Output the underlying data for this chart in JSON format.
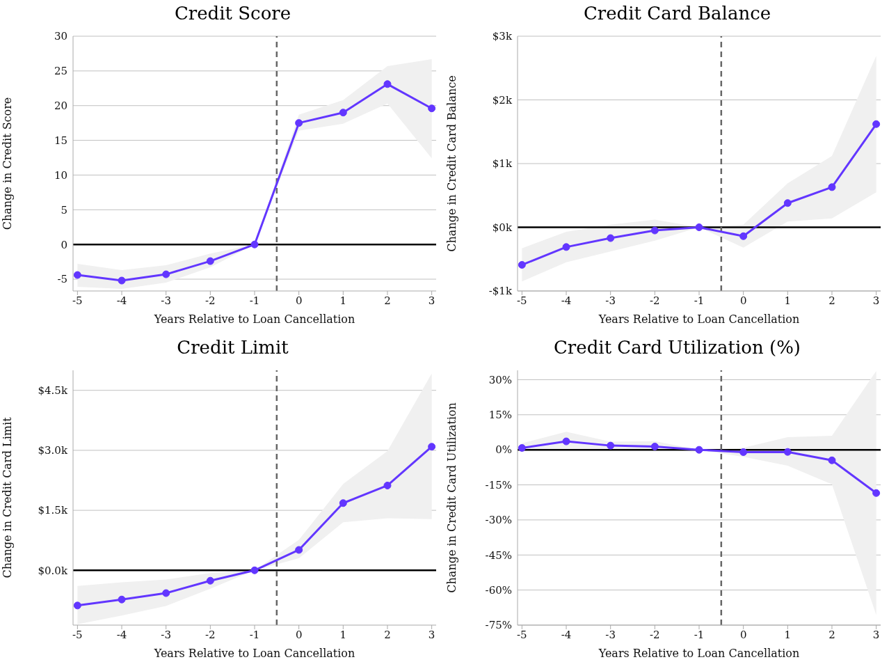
{
  "chart_data": [
    {
      "type": "line",
      "title": "Credit Score",
      "xlabel": "Years Relative to Loan Cancellation",
      "ylabel": "Change in Credit Score",
      "x": [
        -5,
        -4,
        -3,
        -2,
        -1,
        0,
        1,
        2,
        3
      ],
      "xlim": [
        -5.1,
        3.1
      ],
      "xticks": [
        -5,
        -4,
        -3,
        -2,
        -1,
        0,
        1,
        2,
        3
      ],
      "ylim": [
        -6.7,
        30
      ],
      "yticks": [
        -5,
        0,
        5,
        10,
        15,
        20,
        25,
        30
      ],
      "grid": "y",
      "marker": "circle",
      "line_style": "solid",
      "series": [
        {
          "color": "#6236ff",
          "values": [
            -4.4,
            -5.2,
            -4.3,
            -2.4,
            0,
            17.5,
            19.0,
            23.1,
            19.6
          ],
          "lower": [
            -6.1,
            -6.4,
            -5.5,
            -3.3,
            0,
            16.4,
            17.4,
            20.3,
            12.4
          ],
          "upper": [
            -2.8,
            -3.7,
            -3.0,
            -1.3,
            0,
            18.7,
            20.8,
            25.7,
            26.7
          ]
        }
      ],
      "ref_lines": [
        {
          "axis": "y",
          "value": 0,
          "color": "#000000",
          "line_style": "solid"
        },
        {
          "axis": "x",
          "value": -0.5,
          "color": "#666666",
          "line_style": "dashed"
        }
      ]
    },
    {
      "type": "line",
      "title": "Credit Card Balance",
      "xlabel": "Years Relative to Loan Cancellation",
      "ylabel": "Change in Credit Card Balance",
      "x": [
        -5,
        -4,
        -3,
        -2,
        -1,
        0,
        1,
        2,
        3
      ],
      "xlim": [
        -5.1,
        3.1
      ],
      "xticks": [
        -5,
        -4,
        -3,
        -2,
        -1,
        0,
        1,
        2,
        3
      ],
      "ylim": [
        -1000,
        3000
      ],
      "yticks": [
        {
          "value": -1000,
          "label": "-$1k"
        },
        {
          "value": 0,
          "label": "$0k"
        },
        {
          "value": 1000,
          "label": "$1k"
        },
        {
          "value": 2000,
          "label": "$2k"
        },
        {
          "value": 3000,
          "label": "$3k"
        }
      ],
      "grid": "y",
      "marker": "circle",
      "line_style": "solid",
      "series": [
        {
          "color": "#6236ff",
          "values": [
            -590,
            -310,
            -170,
            -50,
            0,
            -140,
            380,
            630,
            1620
          ],
          "lower": [
            -850,
            -550,
            -380,
            -210,
            0,
            -320,
            90,
            140,
            550
          ],
          "upper": [
            -330,
            -70,
            40,
            120,
            0,
            40,
            690,
            1120,
            2690
          ]
        }
      ],
      "ref_lines": [
        {
          "axis": "y",
          "value": 0,
          "color": "#000000",
          "line_style": "solid"
        },
        {
          "axis": "x",
          "value": -0.5,
          "color": "#666666",
          "line_style": "dashed"
        }
      ]
    },
    {
      "type": "line",
      "title": "Credit Limit",
      "xlabel": "Years Relative to Loan Cancellation",
      "ylabel": "Change in Credit Card Limit",
      "x": [
        -5,
        -4,
        -3,
        -2,
        -1,
        0,
        1,
        2,
        3
      ],
      "xlim": [
        -5.1,
        3.1
      ],
      "xticks": [
        -5,
        -4,
        -3,
        -2,
        -1,
        0,
        1,
        2,
        3
      ],
      "ylim": [
        -1370,
        5000
      ],
      "yticks": [
        {
          "value": 0,
          "label": "$0.0k"
        },
        {
          "value": 1500,
          "label": "$1.5k"
        },
        {
          "value": 3000,
          "label": "$3.0k"
        },
        {
          "value": 4500,
          "label": "$4.5k"
        }
      ],
      "grid": "y",
      "marker": "circle",
      "line_style": "solid",
      "series": [
        {
          "color": "#6236ff",
          "values": [
            -880,
            -730,
            -570,
            -260,
            0,
            510,
            1680,
            2120,
            3090
          ],
          "lower": [
            -1350,
            -1130,
            -890,
            -460,
            0,
            300,
            1200,
            1300,
            1280
          ],
          "upper": [
            -390,
            -300,
            -230,
            -70,
            0,
            760,
            2160,
            2980,
            4920
          ]
        }
      ],
      "ref_lines": [
        {
          "axis": "y",
          "value": 0,
          "color": "#000000",
          "line_style": "solid"
        },
        {
          "axis": "x",
          "value": -0.5,
          "color": "#666666",
          "line_style": "dashed"
        }
      ]
    },
    {
      "type": "line",
      "title": "Credit Card Utilization (%)",
      "xlabel": "Years Relative to Loan Cancellation",
      "ylabel": "Change in Credit Card Utilization",
      "x": [
        -5,
        -4,
        -3,
        -2,
        -1,
        0,
        1,
        2,
        3
      ],
      "xlim": [
        -5.1,
        3.1
      ],
      "xticks": [
        -5,
        -4,
        -3,
        -2,
        -1,
        0,
        1,
        2,
        3
      ],
      "ylim": [
        -75,
        34
      ],
      "yticks": [
        {
          "value": -75,
          "label": "-75%"
        },
        {
          "value": -60,
          "label": "-60%"
        },
        {
          "value": -45,
          "label": "-45%"
        },
        {
          "value": -30,
          "label": "-30%"
        },
        {
          "value": -15,
          "label": "-15%"
        },
        {
          "value": 0,
          "label": "0%"
        },
        {
          "value": 15,
          "label": "15%"
        },
        {
          "value": 30,
          "label": "30%"
        }
      ],
      "grid": "y",
      "marker": "circle",
      "line_style": "solid",
      "series": [
        {
          "color": "#6236ff",
          "values": [
            0.8,
            3.6,
            1.8,
            1.4,
            0,
            -1.0,
            -0.9,
            -4.5,
            -18.5
          ],
          "lower": [
            -0.5,
            -0.5,
            -0.5,
            -0.5,
            0,
            -3,
            -6.8,
            -14.8,
            -70.7
          ],
          "upper": [
            2.8,
            7.7,
            3.5,
            3.7,
            0,
            0.9,
            5.4,
            6.0,
            33.7
          ]
        }
      ],
      "ref_lines": [
        {
          "axis": "y",
          "value": 0,
          "color": "#000000",
          "line_style": "solid"
        },
        {
          "axis": "x",
          "value": -0.5,
          "color": "#666666",
          "line_style": "dashed"
        }
      ]
    }
  ]
}
